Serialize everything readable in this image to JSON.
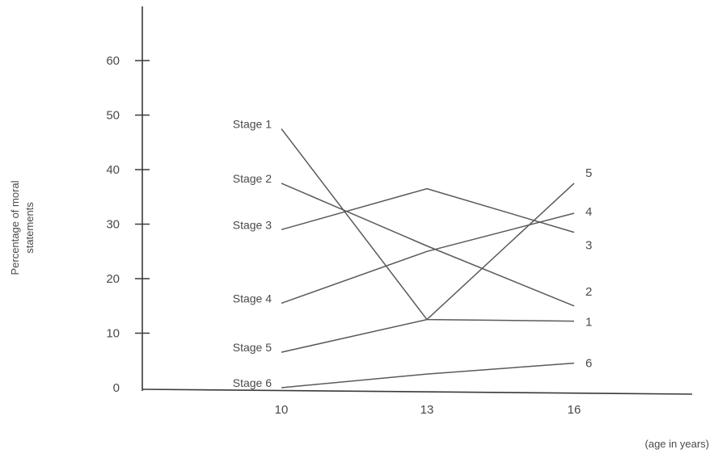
{
  "chart_data": {
    "type": "line",
    "title": "",
    "ylabel_lines": [
      "Percentage of moral",
      "statements"
    ],
    "xlabel": "(age in years)",
    "x": [
      10,
      13,
      16
    ],
    "x_tick_labels": [
      "10",
      "13",
      "16"
    ],
    "y_tick_labels": [
      "0",
      "10",
      "20",
      "30",
      "40",
      "50",
      "60"
    ],
    "y_ticks": [
      0,
      10,
      20,
      30,
      40,
      50,
      60
    ],
    "ylim": [
      0,
      70
    ],
    "grid": false,
    "series": [
      {
        "name": "Stage 1",
        "end_label": "1",
        "values": [
          47.5,
          12.5,
          12.2
        ]
      },
      {
        "name": "Stage 2",
        "end_label": "2",
        "values": [
          37.5,
          26,
          15
        ]
      },
      {
        "name": "Stage 3",
        "end_label": "3",
        "values": [
          29,
          36.5,
          28.5
        ]
      },
      {
        "name": "Stage 4",
        "end_label": "4",
        "values": [
          15.5,
          25,
          32
        ]
      },
      {
        "name": "Stage 5",
        "end_label": "5",
        "values": [
          6.5,
          12.5,
          37.5
        ]
      },
      {
        "name": "Stage 6",
        "end_label": "6",
        "values": [
          0,
          2.5,
          4.5
        ]
      }
    ],
    "line_color": "#5a5a5a",
    "axis_color": "#3a3a3a",
    "text_color": "#4a4a4a"
  }
}
